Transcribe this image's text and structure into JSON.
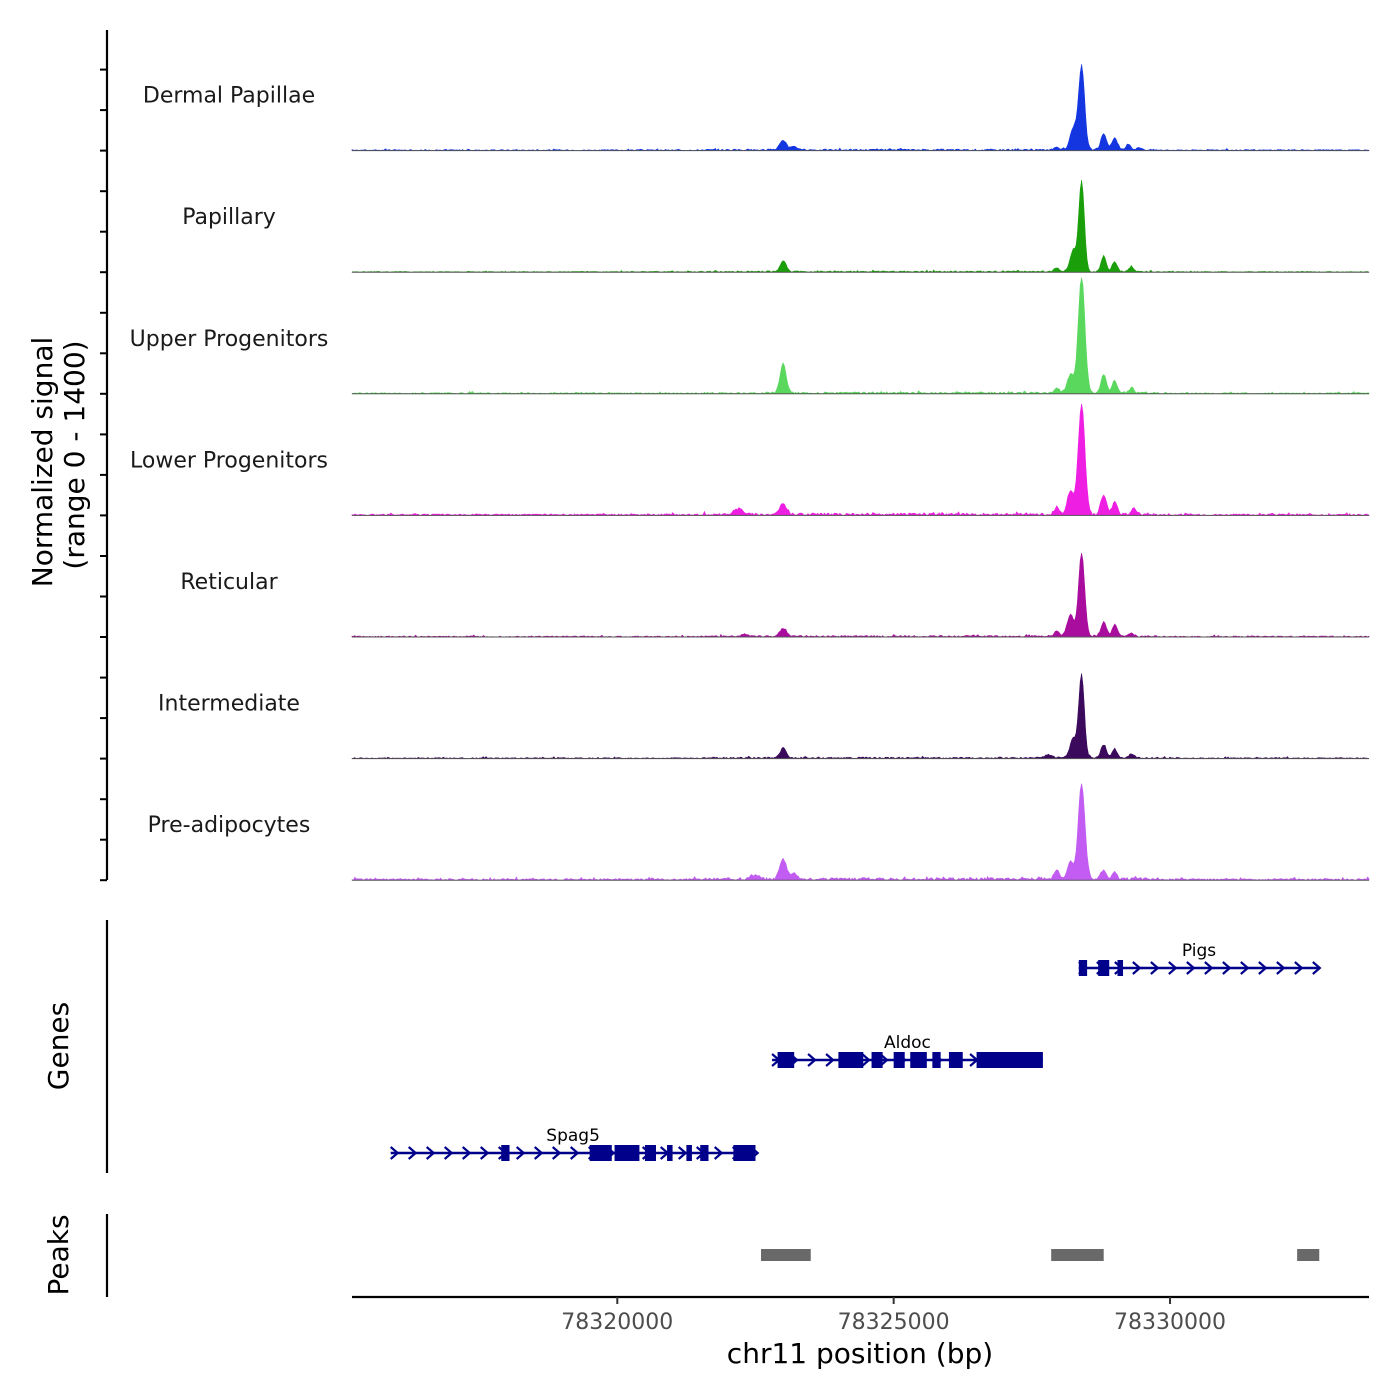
{
  "chart_data": {
    "type": "area",
    "title": "",
    "chromosome": "chr11",
    "xlabel": "chr11 position (bp)",
    "ylabel_line1": "Normalized signal",
    "ylabel_line2": "(range 0 - 1400)",
    "xlim": [
      78315200,
      78333600
    ],
    "ylim": [
      0,
      1400
    ],
    "x_ticks": [
      78320000,
      78325000,
      78330000
    ],
    "x_tick_labels": [
      "78320000",
      "78325000",
      "78330000"
    ],
    "tracks": [
      {
        "name": "Dermal Papillae",
        "color": "#1436e0",
        "baseline_noise": 12,
        "peaks": [
          {
            "center": 78323000,
            "height": 110,
            "width": 65
          },
          {
            "center": 78323200,
            "height": 45,
            "width": 45
          },
          {
            "center": 78328400,
            "height": 1000,
            "width": 55
          },
          {
            "center": 78328250,
            "height": 260,
            "width": 60
          },
          {
            "center": 78328800,
            "height": 200,
            "width": 50
          },
          {
            "center": 78329000,
            "height": 140,
            "width": 50
          },
          {
            "center": 78329250,
            "height": 70,
            "width": 45
          },
          {
            "center": 78327950,
            "height": 40,
            "width": 45
          },
          {
            "center": 78329450,
            "height": 30,
            "width": 45
          }
        ]
      },
      {
        "name": "Papillary",
        "color": "#1a9e0a",
        "baseline_noise": 10,
        "peaks": [
          {
            "center": 78323000,
            "height": 130,
            "width": 55
          },
          {
            "center": 78328400,
            "height": 1080,
            "width": 50
          },
          {
            "center": 78328250,
            "height": 250,
            "width": 60
          },
          {
            "center": 78328800,
            "height": 190,
            "width": 45
          },
          {
            "center": 78329000,
            "height": 120,
            "width": 45
          },
          {
            "center": 78329300,
            "height": 60,
            "width": 45
          },
          {
            "center": 78327950,
            "height": 45,
            "width": 45
          }
        ]
      },
      {
        "name": "Upper Progenitors",
        "color": "#5ad85e",
        "baseline_noise": 14,
        "peaks": [
          {
            "center": 78323000,
            "height": 360,
            "width": 55
          },
          {
            "center": 78328400,
            "height": 1400,
            "width": 60
          },
          {
            "center": 78328200,
            "height": 220,
            "width": 60
          },
          {
            "center": 78328800,
            "height": 220,
            "width": 50
          },
          {
            "center": 78329000,
            "height": 140,
            "width": 45
          },
          {
            "center": 78329300,
            "height": 60,
            "width": 45
          },
          {
            "center": 78327950,
            "height": 70,
            "width": 45
          }
        ]
      },
      {
        "name": "Lower Progenitors",
        "color": "#ee1ee2",
        "baseline_noise": 18,
        "peaks": [
          {
            "center": 78322200,
            "height": 70,
            "width": 80
          },
          {
            "center": 78323000,
            "height": 130,
            "width": 60
          },
          {
            "center": 78328400,
            "height": 1320,
            "width": 60
          },
          {
            "center": 78328200,
            "height": 280,
            "width": 60
          },
          {
            "center": 78328800,
            "height": 240,
            "width": 50
          },
          {
            "center": 78329000,
            "height": 160,
            "width": 45
          },
          {
            "center": 78327950,
            "height": 90,
            "width": 45
          },
          {
            "center": 78329350,
            "height": 70,
            "width": 45
          }
        ]
      },
      {
        "name": "Reticular",
        "color": "#a90d9e",
        "baseline_noise": 12,
        "peaks": [
          {
            "center": 78323000,
            "height": 100,
            "width": 60
          },
          {
            "center": 78322300,
            "height": 30,
            "width": 60
          },
          {
            "center": 78328400,
            "height": 1000,
            "width": 55
          },
          {
            "center": 78328200,
            "height": 260,
            "width": 60
          },
          {
            "center": 78328800,
            "height": 170,
            "width": 50
          },
          {
            "center": 78329000,
            "height": 140,
            "width": 45
          },
          {
            "center": 78327950,
            "height": 60,
            "width": 45
          },
          {
            "center": 78329300,
            "height": 40,
            "width": 45
          }
        ]
      },
      {
        "name": "Intermediate",
        "color": "#3b0a5c",
        "baseline_noise": 12,
        "peaks": [
          {
            "center": 78323000,
            "height": 120,
            "width": 55
          },
          {
            "center": 78328400,
            "height": 1000,
            "width": 50
          },
          {
            "center": 78328250,
            "height": 230,
            "width": 60
          },
          {
            "center": 78328800,
            "height": 160,
            "width": 50
          },
          {
            "center": 78329000,
            "height": 110,
            "width": 45
          },
          {
            "center": 78329300,
            "height": 50,
            "width": 45
          },
          {
            "center": 78327800,
            "height": 40,
            "width": 60
          }
        ]
      },
      {
        "name": "Pre-adipocytes",
        "color": "#c25cf2",
        "baseline_noise": 20,
        "peaks": [
          {
            "center": 78322500,
            "height": 50,
            "width": 70
          },
          {
            "center": 78323000,
            "height": 250,
            "width": 60
          },
          {
            "center": 78323200,
            "height": 70,
            "width": 50
          },
          {
            "center": 78328400,
            "height": 1160,
            "width": 60
          },
          {
            "center": 78328200,
            "height": 200,
            "width": 60
          },
          {
            "center": 78328800,
            "height": 110,
            "width": 50
          },
          {
            "center": 78329000,
            "height": 70,
            "width": 45
          },
          {
            "center": 78327950,
            "height": 110,
            "width": 45
          }
        ]
      }
    ],
    "genes_title": "Genes",
    "gene_color": "#00008b",
    "genes": [
      {
        "name": "Pigs",
        "row": 1,
        "start": 78328350,
        "end": 78332700,
        "strand": "+",
        "exons": [
          [
            78328350,
            78328500
          ],
          [
            78328700,
            78328900
          ],
          [
            78329050,
            78329150
          ]
        ]
      },
      {
        "name": "Aldoc",
        "row": 2,
        "start": 78322800,
        "end": 78327700,
        "strand": "+",
        "exons": [
          [
            78322900,
            78323200
          ],
          [
            78324000,
            78324450
          ],
          [
            78324600,
            78324800
          ],
          [
            78325000,
            78325200
          ],
          [
            78325300,
            78325600
          ],
          [
            78325700,
            78325850
          ],
          [
            78326000,
            78326250
          ],
          [
            78326500,
            78327700
          ]
        ]
      },
      {
        "name": "Spag5",
        "row": 3,
        "start": 78315900,
        "end": 78322500,
        "strand": "+",
        "exons": [
          [
            78317900,
            78318050
          ],
          [
            78319500,
            78319900
          ],
          [
            78319950,
            78320400
          ],
          [
            78320500,
            78320700
          ],
          [
            78320900,
            78321000
          ],
          [
            78321250,
            78321350
          ],
          [
            78321500,
            78321650
          ],
          [
            78322100,
            78322500
          ]
        ]
      }
    ],
    "peaks_title": "Peaks",
    "peak_color": "#696969",
    "peak_regions": [
      [
        78322600,
        78323500
      ],
      [
        78327850,
        78328800
      ],
      [
        78332300,
        78332700
      ]
    ]
  }
}
